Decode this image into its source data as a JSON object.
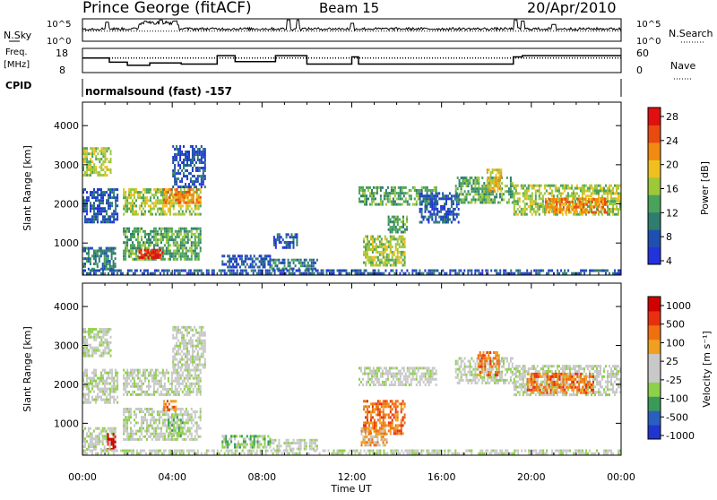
{
  "header": {
    "title": "Prince George (fitACF)",
    "beam": "Beam 15",
    "date": "20/Apr/2010"
  },
  "panels": {
    "sky_label": "N.Sky",
    "search_label": "N.Search",
    "freq_label_line1": "Freq.",
    "freq_label_line2": "[MHz]",
    "nave_label": "Nave",
    "cpid_label": "CPID",
    "cpid_text": "normalsound (fast) -157",
    "sky_ticks": [
      "10^5",
      "10^0"
    ],
    "search_ticks": [
      "10^5",
      "10^0"
    ],
    "freq_ticks": [
      "18",
      "8"
    ],
    "nave_ticks": [
      "60",
      "0"
    ]
  },
  "colors": {
    "power_scale": [
      "#2233dd",
      "#1f4fb0",
      "#2f7d6e",
      "#4aa35a",
      "#9dc83a",
      "#f0c020",
      "#f08a10",
      "#e84a10",
      "#e01010"
    ],
    "velocity_scale": [
      "#2035d0",
      "#2a5fc0",
      "#3a9a5a",
      "#8ed04a",
      "#c8c8c8",
      "#c8c8c8",
      "#f0a020",
      "#f07010",
      "#e83010",
      "#d00000"
    ]
  },
  "chart_data": [
    {
      "type": "heatmap",
      "name": "power",
      "xlabel": "Time UT",
      "ylabel": "Slant Range [km]",
      "colorbar_label": "Power [dB]",
      "colorbar_ticks": [
        "28",
        "24",
        "20",
        "16",
        "12",
        "8",
        "4"
      ],
      "x_ticks": [
        "00:00",
        "04:00",
        "08:00",
        "12:00",
        "16:00",
        "20:00",
        "00:00"
      ],
      "y_ticks": [
        "4000",
        "3000",
        "2000",
        "1000"
      ],
      "xlim": [
        0,
        24
      ],
      "ylim": [
        180,
        4600
      ],
      "patches": [
        {
          "t0": 0.0,
          "t1": 1.3,
          "r0": 2700,
          "r1": 3450,
          "level": 4
        },
        {
          "t0": 0.0,
          "t1": 1.6,
          "r0": 1500,
          "r1": 2400,
          "level": 1
        },
        {
          "t0": 0.0,
          "t1": 1.5,
          "r0": 300,
          "r1": 900,
          "level": 2
        },
        {
          "t0": 1.8,
          "t1": 5.3,
          "r0": 1700,
          "r1": 2400,
          "level": 4
        },
        {
          "t0": 3.6,
          "t1": 5.3,
          "r0": 2000,
          "r1": 2400,
          "level": 6
        },
        {
          "t0": 1.8,
          "t1": 5.3,
          "r0": 550,
          "r1": 1400,
          "level": 3
        },
        {
          "t0": 2.5,
          "t1": 3.6,
          "r0": 600,
          "r1": 850,
          "level": 8
        },
        {
          "t0": 4.0,
          "t1": 5.5,
          "r0": 2400,
          "r1": 3500,
          "level": 1
        },
        {
          "t0": 6.2,
          "t1": 8.4,
          "r0": 350,
          "r1": 700,
          "level": 1
        },
        {
          "t0": 8.4,
          "t1": 10.5,
          "r0": 300,
          "r1": 600,
          "level": 2
        },
        {
          "t0": 8.5,
          "t1": 9.6,
          "r0": 850,
          "r1": 1250,
          "level": 1
        },
        {
          "t0": 12.3,
          "t1": 15.8,
          "r0": 1950,
          "r1": 2450,
          "level": 3
        },
        {
          "t0": 12.5,
          "t1": 14.4,
          "r0": 400,
          "r1": 1200,
          "level": 4
        },
        {
          "t0": 13.6,
          "t1": 14.5,
          "r0": 1250,
          "r1": 1700,
          "level": 3
        },
        {
          "t0": 15.0,
          "t1": 16.8,
          "r0": 1500,
          "r1": 2300,
          "level": 1
        },
        {
          "t0": 16.6,
          "t1": 19.2,
          "r0": 2000,
          "r1": 2700,
          "level": 3
        },
        {
          "t0": 18.0,
          "t1": 18.7,
          "r0": 2300,
          "r1": 2900,
          "level": 5
        },
        {
          "t0": 19.2,
          "t1": 24.0,
          "r0": 1700,
          "r1": 2500,
          "level": 4
        },
        {
          "t0": 20.6,
          "t1": 23.4,
          "r0": 1750,
          "r1": 2150,
          "level": 6
        },
        {
          "t0": 0.0,
          "t1": 24.0,
          "r0": 180,
          "r1": 330,
          "level": 1
        }
      ]
    },
    {
      "type": "heatmap",
      "name": "velocity",
      "xlabel": "Time UT",
      "ylabel": "Slant Range [km]",
      "colorbar_label": "Velocity [m s⁻¹]",
      "colorbar_ticks": [
        "1000",
        "500",
        "100",
        "25",
        "-25",
        "-100",
        "-500",
        "-1000"
      ],
      "x_ticks": [
        "00:00",
        "04:00",
        "08:00",
        "12:00",
        "16:00",
        "20:00",
        "00:00"
      ],
      "y_ticks": [
        "4000",
        "3000",
        "2000",
        "1000"
      ],
      "xlim": [
        0,
        24
      ],
      "ylim": [
        180,
        4600
      ],
      "patches": [
        {
          "t0": 0.0,
          "t1": 1.3,
          "r0": 2700,
          "r1": 3450,
          "level": 4
        },
        {
          "t0": 0.0,
          "t1": 1.6,
          "r0": 1500,
          "r1": 2400,
          "level": 4
        },
        {
          "t0": 0.0,
          "t1": 1.5,
          "r0": 300,
          "r1": 900,
          "level": 4
        },
        {
          "t0": 1.1,
          "t1": 1.5,
          "r0": 300,
          "r1": 750,
          "level": 9
        },
        {
          "t0": 1.8,
          "t1": 5.3,
          "r0": 1700,
          "r1": 2400,
          "level": 4
        },
        {
          "t0": 1.8,
          "t1": 5.3,
          "r0": 550,
          "r1": 1400,
          "level": 4
        },
        {
          "t0": 3.8,
          "t1": 4.5,
          "r0": 650,
          "r1": 1250,
          "level": 3
        },
        {
          "t0": 3.6,
          "t1": 4.2,
          "r0": 1300,
          "r1": 1600,
          "level": 7
        },
        {
          "t0": 4.0,
          "t1": 5.5,
          "r0": 2400,
          "r1": 3500,
          "level": 4
        },
        {
          "t0": 6.2,
          "t1": 8.4,
          "r0": 350,
          "r1": 700,
          "level": 3
        },
        {
          "t0": 8.4,
          "t1": 10.5,
          "r0": 300,
          "r1": 600,
          "level": 4
        },
        {
          "t0": 12.3,
          "t1": 15.8,
          "r0": 1950,
          "r1": 2450,
          "level": 4
        },
        {
          "t0": 12.5,
          "t1": 14.4,
          "r0": 700,
          "r1": 1600,
          "level": 7
        },
        {
          "t0": 12.4,
          "t1": 13.6,
          "r0": 400,
          "r1": 900,
          "level": 6
        },
        {
          "t0": 16.6,
          "t1": 19.2,
          "r0": 2000,
          "r1": 2700,
          "level": 4
        },
        {
          "t0": 17.6,
          "t1": 18.6,
          "r0": 2200,
          "r1": 2850,
          "level": 7
        },
        {
          "t0": 19.2,
          "t1": 24.0,
          "r0": 1700,
          "r1": 2500,
          "level": 4
        },
        {
          "t0": 19.8,
          "t1": 22.8,
          "r0": 1750,
          "r1": 2300,
          "level": 7
        },
        {
          "t0": 0.0,
          "t1": 24.0,
          "r0": 180,
          "r1": 330,
          "level": 4
        }
      ]
    }
  ],
  "aux_data": {
    "sky_baseline": 0.55,
    "sky_spikes": [
      {
        "t": 1.1,
        "v": 0.85
      },
      {
        "t": 2.8,
        "v": 0.9
      },
      {
        "t": 3.5,
        "v": 0.95
      },
      {
        "t": 4.1,
        "v": 0.9
      },
      {
        "t": 9.2,
        "v": 0.95
      },
      {
        "t": 9.6,
        "v": 0.95
      },
      {
        "t": 12.0,
        "v": 0.8
      },
      {
        "t": 19.3,
        "v": 0.95
      },
      {
        "t": 19.6,
        "v": 0.9
      },
      {
        "t": 21.0,
        "v": 0.75
      }
    ],
    "freq_steps": [
      {
        "t0": 0.0,
        "t1": 1.2,
        "mhz": 14.0
      },
      {
        "t0": 1.2,
        "t1": 2.0,
        "mhz": 12.3
      },
      {
        "t0": 2.0,
        "t1": 3.0,
        "mhz": 11.0
      },
      {
        "t0": 3.0,
        "t1": 4.4,
        "mhz": 12.0
      },
      {
        "t0": 4.4,
        "t1": 6.0,
        "mhz": 11.5
      },
      {
        "t0": 6.0,
        "t1": 6.8,
        "mhz": 15.0
      },
      {
        "t0": 6.8,
        "t1": 8.6,
        "mhz": 12.5
      },
      {
        "t0": 8.6,
        "t1": 10.0,
        "mhz": 15.0
      },
      {
        "t0": 10.0,
        "t1": 12.0,
        "mhz": 11.5
      },
      {
        "t0": 12.0,
        "t1": 12.3,
        "mhz": 14.5
      },
      {
        "t0": 12.3,
        "t1": 19.2,
        "mhz": 11.5
      },
      {
        "t0": 19.2,
        "t1": 19.6,
        "mhz": 14.5
      },
      {
        "t0": 19.6,
        "t1": 24.0,
        "mhz": 15.0
      }
    ],
    "nave_dotted": 0.6
  }
}
